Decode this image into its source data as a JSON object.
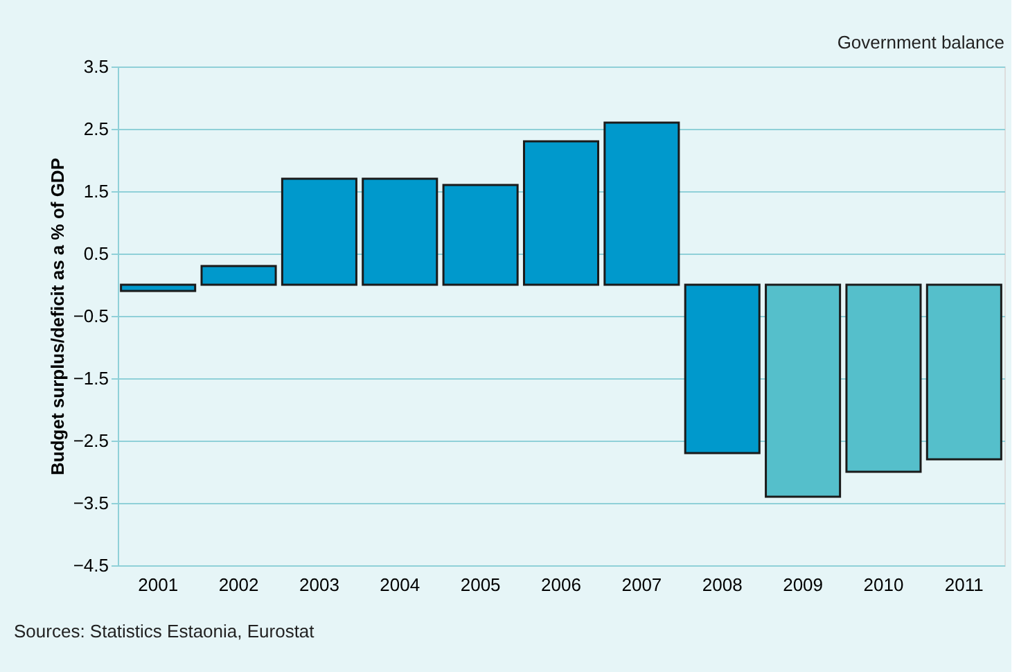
{
  "chart_data": {
    "type": "bar",
    "title": "Government balance",
    "ylabel": "Budget surplus/deficit as a % of GDP",
    "categories": [
      "2001",
      "2002",
      "2003",
      "2004",
      "2005",
      "2006",
      "2007",
      "2008",
      "2009",
      "2010",
      "2011"
    ],
    "values": [
      -0.1,
      0.3,
      1.7,
      1.7,
      1.6,
      2.3,
      2.6,
      -2.7,
      -3.4,
      -3.0,
      -2.8
    ],
    "colors": [
      "#0099cc",
      "#0099cc",
      "#0099cc",
      "#0099cc",
      "#0099cc",
      "#0099cc",
      "#0099cc",
      "#0099cc",
      "#55bfcb",
      "#55bfcb",
      "#55bfcb"
    ],
    "ylim": [
      -4.5,
      3.5
    ],
    "yticks": [
      -4.5,
      -3.5,
      -2.5,
      -1.5,
      -0.5,
      0.5,
      1.5,
      2.5,
      3.5
    ],
    "grid": "y",
    "annotations": [
      "Sources: Statistics Estaonia, Eurostat"
    ]
  }
}
